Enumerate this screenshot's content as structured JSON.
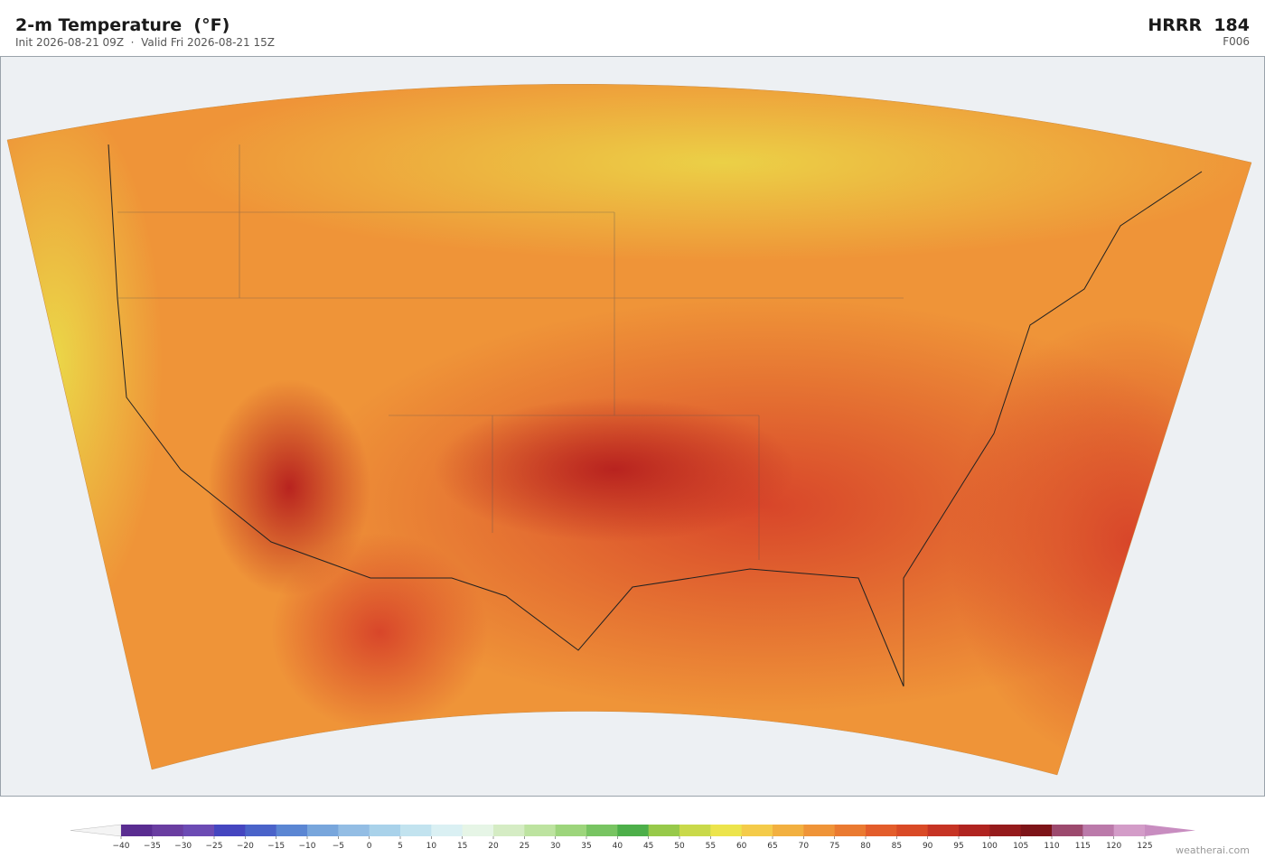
{
  "header": {
    "title": "2-m Temperature  (°F)",
    "subtitle": "Init 2026-08-21 09Z  ·  Valid Fri 2026-08-21 15Z",
    "model": "HRRR  184",
    "forecast_hour": "F006"
  },
  "colorbar": {
    "ticks": [
      {
        "value": -40,
        "label": "−40"
      },
      {
        "value": -35,
        "label": "−35"
      },
      {
        "value": -30,
        "label": "−30"
      },
      {
        "value": -25,
        "label": "−25"
      },
      {
        "value": -20,
        "label": "−20"
      },
      {
        "value": -15,
        "label": "−15"
      },
      {
        "value": -10,
        "label": "−10"
      },
      {
        "value": -5,
        "label": "−5"
      },
      0,
      5,
      10,
      15,
      20,
      25,
      30,
      35,
      40,
      45,
      50,
      55,
      60,
      65,
      70,
      75,
      80,
      85,
      90,
      95,
      100,
      105,
      110,
      115,
      120,
      125
    ],
    "colors": [
      "#5a2d91",
      "#6a3ea1",
      "#6c4bb4",
      "#4546c0",
      "#4a63c9",
      "#5b86d3",
      "#78a6dc",
      "#93bde4",
      "#a9d2ea",
      "#c2e3ef",
      "#daf0f3",
      "#e6f5e6",
      "#d5ecc4",
      "#bde3a0",
      "#9dd57c",
      "#78c462",
      "#4daf4a",
      "#97c94a",
      "#c9d94a",
      "#ece44c",
      "#f4cb4a",
      "#f2b040",
      "#ef9438",
      "#ea7a31",
      "#e35d2b",
      "#d94a26",
      "#c63424",
      "#b02420",
      "#951b1c",
      "#7d1418",
      "#9c4a6e",
      "#bb7aaa",
      "#d39cc8"
    ],
    "under_color": "#f4f4f4",
    "over_color": "#c88dc0"
  },
  "credit": "weatherai.com"
}
